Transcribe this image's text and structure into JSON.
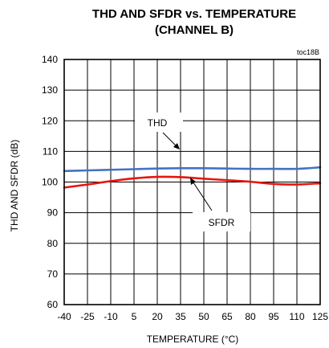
{
  "chart_data": {
    "type": "line",
    "title": "THD AND SFDR vs. TEMPERATURE",
    "subtitle": "(CHANNEL B)",
    "figure_code": "toc18B",
    "xlabel": "TEMPERATURE (°C)",
    "ylabel": "THD AND SFDR (dB)",
    "xlim": [
      -40,
      125
    ],
    "ylim": [
      60,
      140
    ],
    "xticks": [
      -40,
      -25,
      -10,
      5,
      20,
      35,
      50,
      65,
      80,
      95,
      110,
      125
    ],
    "yticks": [
      60,
      70,
      80,
      90,
      100,
      110,
      120,
      130,
      140
    ],
    "grid": true,
    "series": [
      {
        "name": "THD",
        "color": "#4472c4",
        "x": [
          -40,
          -25,
          -10,
          5,
          20,
          35,
          50,
          65,
          80,
          95,
          110,
          125
        ],
        "y": [
          103.6,
          103.8,
          104.0,
          104.2,
          104.4,
          104.5,
          104.5,
          104.4,
          104.3,
          104.3,
          104.3,
          104.8
        ]
      },
      {
        "name": "SFDR",
        "color": "#e8150f",
        "x": [
          -40,
          -25,
          -10,
          5,
          20,
          35,
          50,
          65,
          80,
          95,
          110,
          125
        ],
        "y": [
          98.2,
          99.2,
          100.3,
          101.2,
          101.7,
          101.6,
          101.1,
          100.6,
          100.1,
          99.4,
          99.2,
          99.6
        ]
      }
    ],
    "annotations": [
      {
        "text": "THD",
        "points_to": "THD"
      },
      {
        "text": "SFDR",
        "points_to": "SFDR"
      }
    ]
  }
}
